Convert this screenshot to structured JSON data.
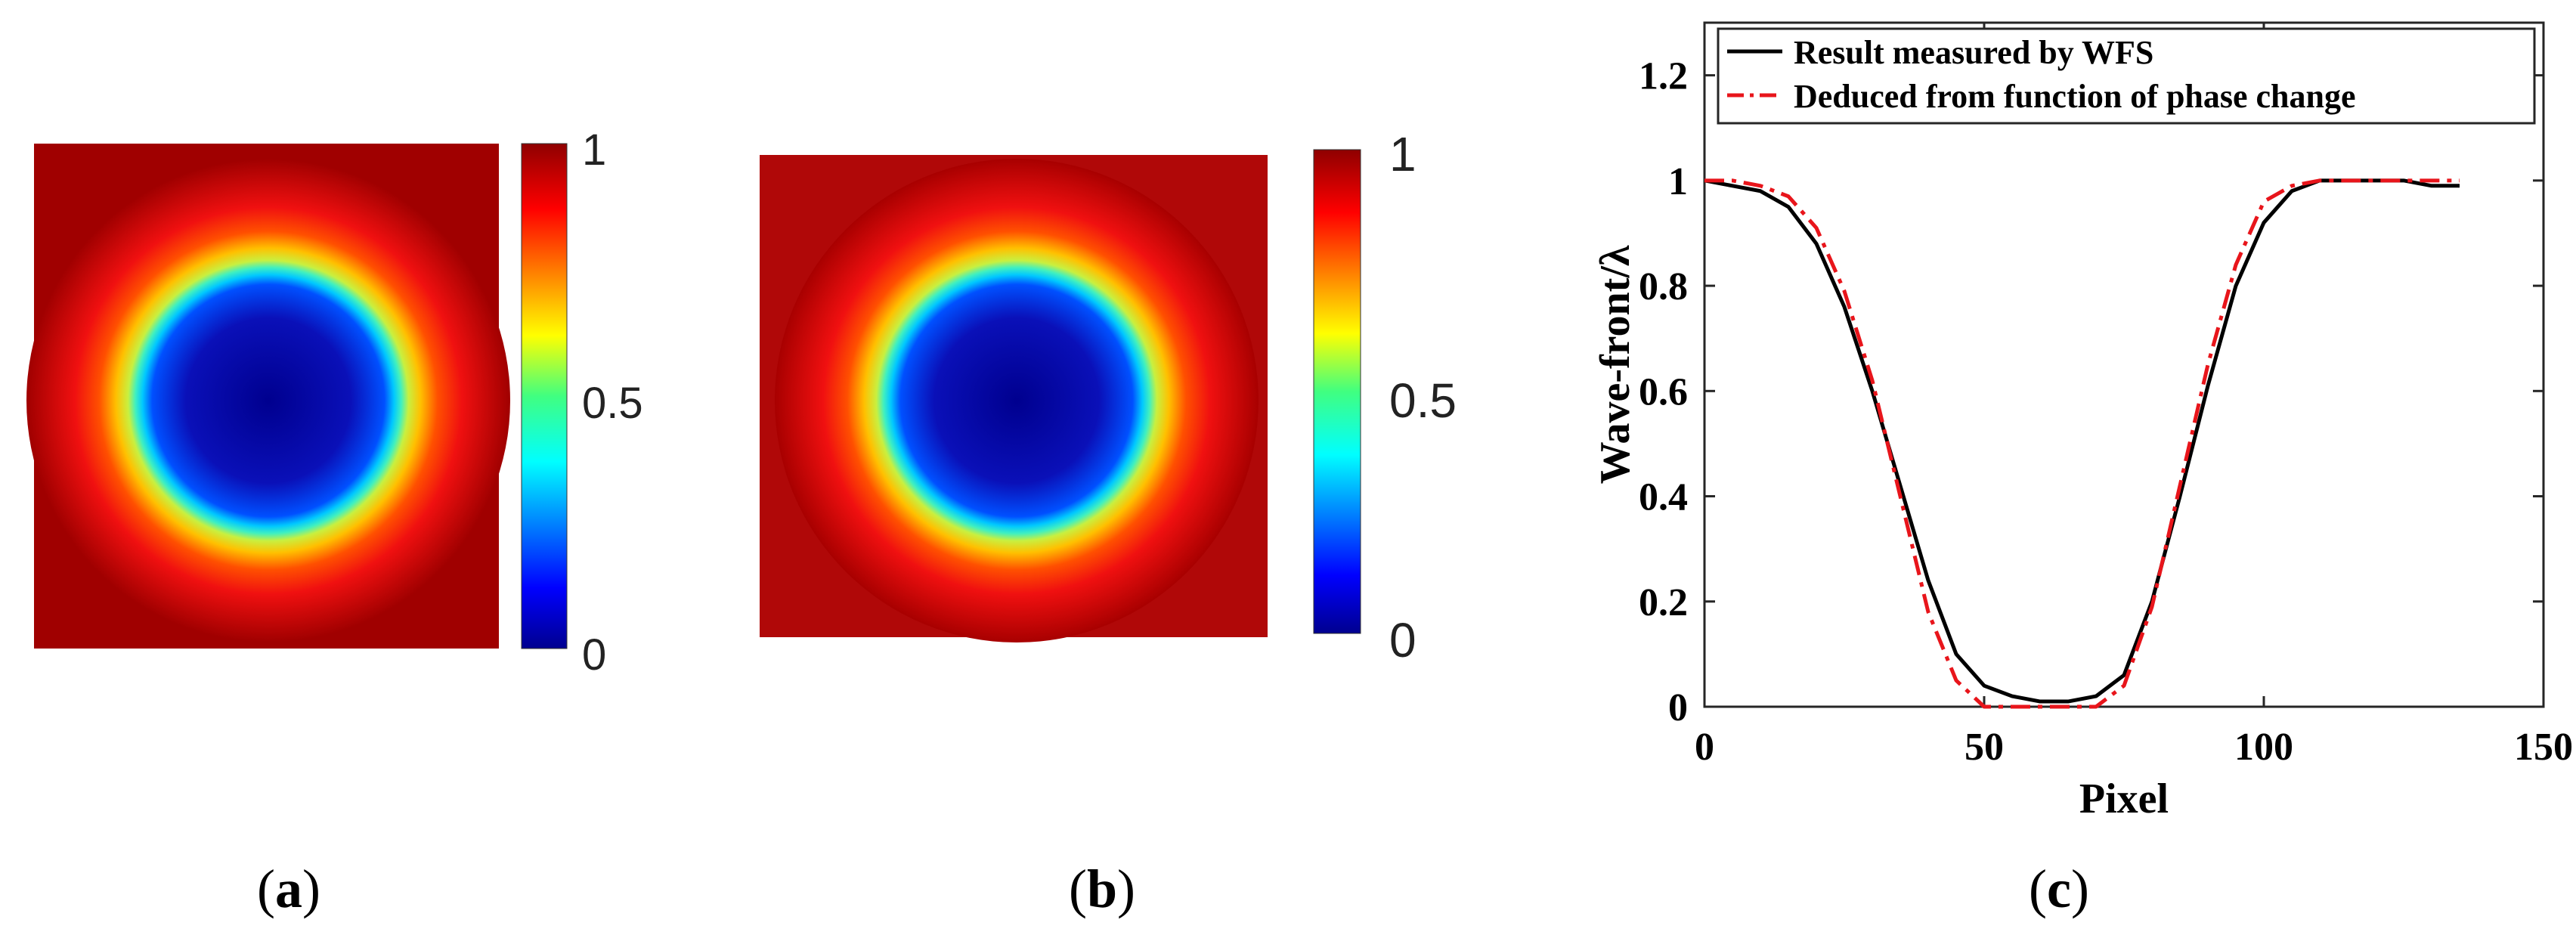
{
  "colors": {
    "measured": "#000000",
    "deduced": "#e8151b",
    "map_low": "#00008f",
    "map_high": "#8f0000"
  },
  "captions": {
    "a": "a",
    "b": "b",
    "c": "c"
  },
  "colorbar": {
    "ticks": [
      "1",
      "0.5",
      "0"
    ]
  },
  "maps": [
    {
      "id": "a",
      "type": "heatmap",
      "description_units": "Wave-front/λ",
      "min": 0,
      "max": 1,
      "colorbar_ticks": [
        0,
        0.5,
        1
      ]
    },
    {
      "id": "b",
      "type": "heatmap",
      "description_units": "Wave-front/λ",
      "min": 0,
      "max": 1,
      "colorbar_ticks": [
        0,
        0.5,
        1
      ]
    }
  ],
  "chart_data": {
    "type": "line",
    "title": "",
    "xlabel": "Pixel",
    "ylabel": "Wave-front/λ",
    "xlim": [
      0,
      150
    ],
    "ylim": [
      0,
      1.3
    ],
    "xticks": [
      0,
      50,
      100,
      150
    ],
    "yticks": [
      0,
      0.2,
      0.4,
      0.6,
      0.8,
      1,
      1.2
    ],
    "xtick_labels": [
      "0",
      "50",
      "100",
      "150"
    ],
    "ytick_labels": [
      "0",
      "0.2",
      "0.4",
      "0.6",
      "0.8",
      "1",
      "1.2"
    ],
    "legend_position": "top",
    "series": [
      {
        "name": "Result measured by WFS",
        "style": "solid",
        "x": [
          0,
          5,
          10,
          15,
          20,
          25,
          30,
          35,
          40,
          45,
          50,
          55,
          60,
          65,
          70,
          75,
          80,
          85,
          90,
          95,
          100,
          105,
          110,
          115,
          120,
          125,
          130,
          135
        ],
        "y": [
          1.0,
          0.99,
          0.98,
          0.95,
          0.88,
          0.76,
          0.6,
          0.42,
          0.24,
          0.1,
          0.04,
          0.02,
          0.01,
          0.01,
          0.02,
          0.06,
          0.2,
          0.4,
          0.61,
          0.8,
          0.92,
          0.98,
          1.0,
          1.0,
          1.0,
          1.0,
          0.99,
          0.99
        ]
      },
      {
        "name": "Deduced from function of phase change",
        "style": "dashdot",
        "x": [
          0,
          5,
          10,
          15,
          20,
          25,
          30,
          35,
          40,
          45,
          50,
          55,
          60,
          65,
          70,
          75,
          80,
          85,
          90,
          95,
          100,
          105,
          110,
          115,
          120,
          125,
          130,
          135
        ],
        "y": [
          1.0,
          1.0,
          0.99,
          0.97,
          0.91,
          0.79,
          0.62,
          0.4,
          0.18,
          0.05,
          0.0,
          0.0,
          0.0,
          0.0,
          0.0,
          0.04,
          0.19,
          0.42,
          0.65,
          0.84,
          0.96,
          0.99,
          1.0,
          1.0,
          1.0,
          1.0,
          1.0,
          1.0
        ]
      }
    ]
  }
}
